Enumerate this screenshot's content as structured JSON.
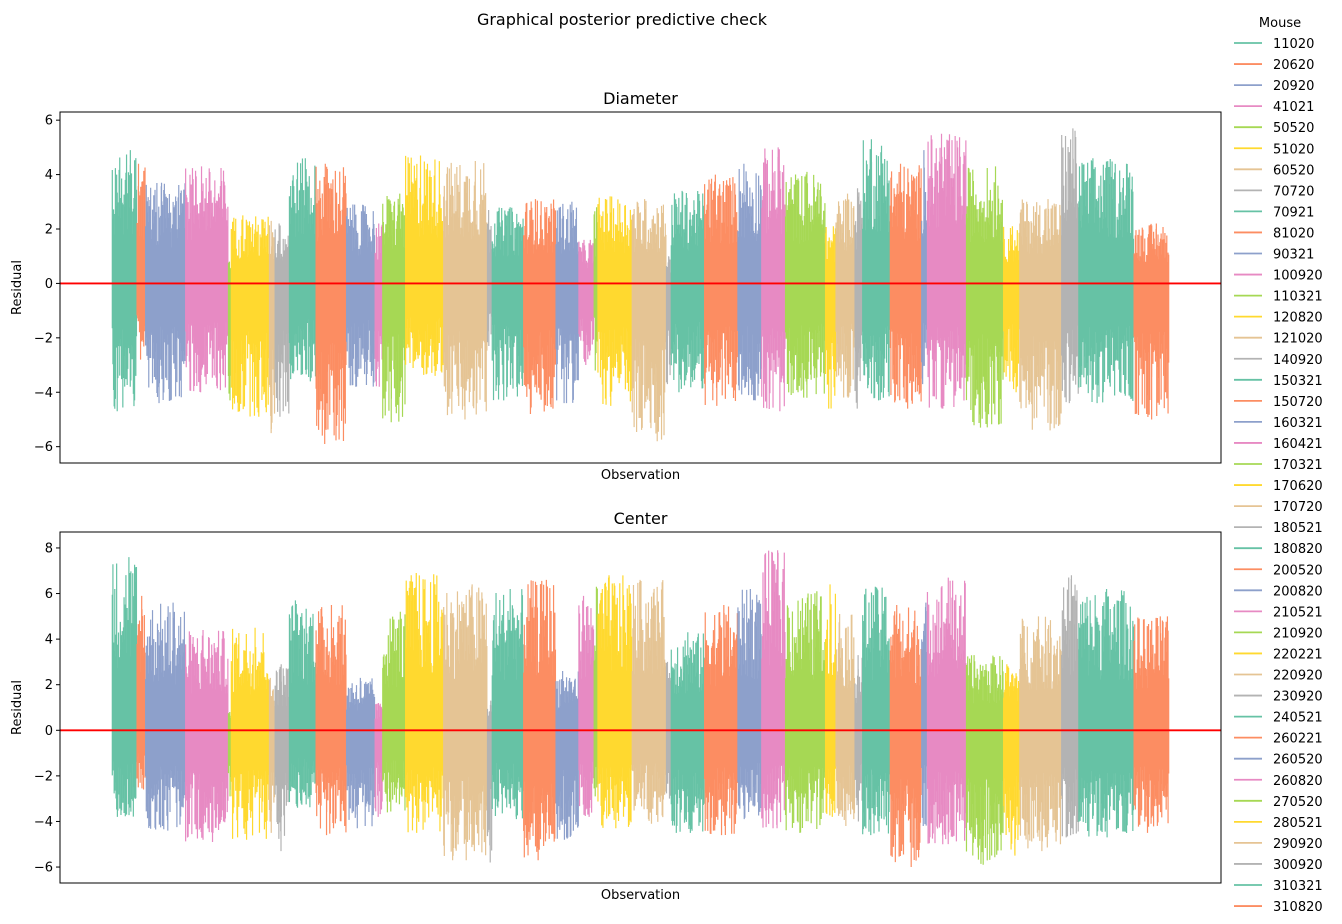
{
  "figure": {
    "suptitle": "Graphical posterior predictive check"
  },
  "legend": {
    "title": "Mouse",
    "placement": "outside-right"
  },
  "palette": [
    "#66c2a5",
    "#fc8d62",
    "#8da0cb",
    "#e78ac3",
    "#a6d854",
    "#ffd92f",
    "#e5c494",
    "#b3b3b3"
  ],
  "reference_line_color": "#ff0000",
  "chart_data": [
    {
      "type": "line",
      "title": "Diameter",
      "xlabel": "Observation",
      "ylabel": "Residual",
      "ylim": [
        -6.6,
        6.3
      ],
      "yticks": [
        -6,
        -4,
        -2,
        0,
        2,
        4,
        6
      ],
      "xticks": [],
      "grid": false,
      "reference_line": {
        "y": 0,
        "color": "#ff0000"
      },
      "series": [
        {
          "name": "11020",
          "observations": 26,
          "min": -4.7,
          "max": 4.9
        },
        {
          "name": "20620",
          "observations": 9,
          "min": -2.8,
          "max": 4.4
        },
        {
          "name": "20920",
          "observations": 42,
          "min": -4.4,
          "max": 3.7
        },
        {
          "name": "41021",
          "observations": 45,
          "min": -4.0,
          "max": 4.3
        },
        {
          "name": "50520",
          "observations": 3,
          "min": -4.3,
          "max": 0.8
        },
        {
          "name": "51020",
          "observations": 40,
          "min": -4.9,
          "max": 2.5
        },
        {
          "name": "60520",
          "observations": 6,
          "min": -5.5,
          "max": 2.3
        },
        {
          "name": "70720",
          "observations": 15,
          "min": -4.9,
          "max": 2.2
        },
        {
          "name": "70921",
          "observations": 28,
          "min": -3.6,
          "max": 4.6
        },
        {
          "name": "81020",
          "observations": 32,
          "min": -5.9,
          "max": 4.4
        },
        {
          "name": "90321",
          "observations": 30,
          "min": -3.8,
          "max": 2.9
        },
        {
          "name": "100920",
          "observations": 8,
          "min": -3.8,
          "max": 2.2
        },
        {
          "name": "110321",
          "observations": 24,
          "min": -5.1,
          "max": 3.3
        },
        {
          "name": "120820",
          "observations": 40,
          "min": -3.4,
          "max": 4.7
        },
        {
          "name": "121020",
          "observations": 46,
          "min": -5.0,
          "max": 4.5
        },
        {
          "name": "140920",
          "observations": 5,
          "min": -2.3,
          "max": 2.7
        },
        {
          "name": "150321",
          "observations": 33,
          "min": -4.3,
          "max": 2.8
        },
        {
          "name": "150720",
          "observations": 34,
          "min": -4.8,
          "max": 3.1
        },
        {
          "name": "160321",
          "observations": 24,
          "min": -4.4,
          "max": 3.0
        },
        {
          "name": "160421",
          "observations": 16,
          "min": -3.0,
          "max": 1.6
        },
        {
          "name": "170321",
          "observations": 4,
          "min": -3.2,
          "max": 2.8
        },
        {
          "name": "170620",
          "observations": 36,
          "min": -4.5,
          "max": 3.2
        },
        {
          "name": "170720",
          "observations": 36,
          "min": -5.8,
          "max": 3.1
        },
        {
          "name": "180521",
          "observations": 5,
          "min": -3.7,
          "max": 1.0
        },
        {
          "name": "180820",
          "observations": 35,
          "min": -4.0,
          "max": 3.4
        },
        {
          "name": "200520",
          "observations": 35,
          "min": -4.5,
          "max": 4.0
        },
        {
          "name": "200820",
          "observations": 25,
          "min": -4.3,
          "max": 4.4
        },
        {
          "name": "210521",
          "observations": 25,
          "min": -4.7,
          "max": 5.0
        },
        {
          "name": "210920",
          "observations": 42,
          "min": -4.2,
          "max": 4.1
        },
        {
          "name": "220221",
          "observations": 11,
          "min": -4.6,
          "max": 2.1
        },
        {
          "name": "220920",
          "observations": 20,
          "min": -4.2,
          "max": 3.3
        },
        {
          "name": "230920",
          "observations": 8,
          "min": -4.6,
          "max": 3.5
        },
        {
          "name": "240521",
          "observations": 29,
          "min": -4.3,
          "max": 5.3
        },
        {
          "name": "260221",
          "observations": 33,
          "min": -4.6,
          "max": 4.4
        },
        {
          "name": "260520",
          "observations": 6,
          "min": -3.7,
          "max": 4.9
        },
        {
          "name": "260820",
          "observations": 41,
          "min": -4.6,
          "max": 5.5
        },
        {
          "name": "270520",
          "observations": 39,
          "min": -5.3,
          "max": 4.3
        },
        {
          "name": "280521",
          "observations": 17,
          "min": -4.0,
          "max": 2.1
        },
        {
          "name": "290920",
          "observations": 44,
          "min": -5.4,
          "max": 3.1
        },
        {
          "name": "300920",
          "observations": 18,
          "min": -4.4,
          "max": 5.7
        },
        {
          "name": "310321",
          "observations": 58,
          "min": -4.4,
          "max": 4.6
        },
        {
          "name": "310820",
          "observations": 37,
          "min": -5.0,
          "max": 2.2
        }
      ]
    },
    {
      "type": "line",
      "title": "Center",
      "xlabel": "Observation",
      "ylabel": "Residual",
      "ylim": [
        -6.7,
        8.7
      ],
      "yticks": [
        -6,
        -4,
        -2,
        0,
        2,
        4,
        6,
        8
      ],
      "xticks": [],
      "grid": false,
      "reference_line": {
        "y": 0,
        "color": "#ff0000"
      },
      "series": [
        {
          "name": "11020",
          "observations": 26,
          "min": -3.8,
          "max": 7.6
        },
        {
          "name": "20620",
          "observations": 9,
          "min": -2.6,
          "max": 5.9
        },
        {
          "name": "20920",
          "observations": 42,
          "min": -4.4,
          "max": 5.6
        },
        {
          "name": "41021",
          "observations": 45,
          "min": -4.9,
          "max": 4.4
        },
        {
          "name": "50520",
          "observations": 3,
          "min": -2.9,
          "max": 0.8
        },
        {
          "name": "51020",
          "observations": 40,
          "min": -4.8,
          "max": 4.5
        },
        {
          "name": "60520",
          "observations": 6,
          "min": -4.5,
          "max": 2.3
        },
        {
          "name": "70720",
          "observations": 15,
          "min": -5.3,
          "max": 2.9
        },
        {
          "name": "70921",
          "observations": 28,
          "min": -3.4,
          "max": 5.7
        },
        {
          "name": "81020",
          "observations": 32,
          "min": -4.6,
          "max": 5.5
        },
        {
          "name": "90321",
          "observations": 30,
          "min": -4.3,
          "max": 2.3
        },
        {
          "name": "100920",
          "observations": 8,
          "min": -3.8,
          "max": 1.2
        },
        {
          "name": "110321",
          "observations": 24,
          "min": -3.6,
          "max": 5.2
        },
        {
          "name": "120820",
          "observations": 40,
          "min": -4.5,
          "max": 6.9
        },
        {
          "name": "121020",
          "observations": 46,
          "min": -5.7,
          "max": 6.4
        },
        {
          "name": "140920",
          "observations": 5,
          "min": -5.8,
          "max": 1.3
        },
        {
          "name": "150321",
          "observations": 33,
          "min": -3.9,
          "max": 6.2
        },
        {
          "name": "150720",
          "observations": 34,
          "min": -5.7,
          "max": 6.6
        },
        {
          "name": "160321",
          "observations": 24,
          "min": -4.8,
          "max": 2.6
        },
        {
          "name": "160421",
          "observations": 16,
          "min": -3.8,
          "max": 5.9
        },
        {
          "name": "170321",
          "observations": 4,
          "min": -2.9,
          "max": 6.3
        },
        {
          "name": "170620",
          "observations": 36,
          "min": -4.3,
          "max": 6.8
        },
        {
          "name": "170720",
          "observations": 36,
          "min": -4.1,
          "max": 6.6
        },
        {
          "name": "180521",
          "observations": 5,
          "min": -3.0,
          "max": 3.0
        },
        {
          "name": "180820",
          "observations": 35,
          "min": -4.5,
          "max": 4.3
        },
        {
          "name": "200520",
          "observations": 35,
          "min": -4.6,
          "max": 5.5
        },
        {
          "name": "200820",
          "observations": 25,
          "min": -3.9,
          "max": 6.2
        },
        {
          "name": "210521",
          "observations": 25,
          "min": -4.3,
          "max": 7.9
        },
        {
          "name": "210920",
          "observations": 42,
          "min": -4.5,
          "max": 6.1
        },
        {
          "name": "220221",
          "observations": 11,
          "min": -3.8,
          "max": 6.4
        },
        {
          "name": "220920",
          "observations": 20,
          "min": -4.2,
          "max": 5.1
        },
        {
          "name": "230920",
          "observations": 8,
          "min": -4.0,
          "max": 3.3
        },
        {
          "name": "240521",
          "observations": 29,
          "min": -4.6,
          "max": 6.3
        },
        {
          "name": "260221",
          "observations": 33,
          "min": -6.0,
          "max": 5.5
        },
        {
          "name": "260520",
          "observations": 6,
          "min": -4.2,
          "max": 5.6
        },
        {
          "name": "260820",
          "observations": 41,
          "min": -5.0,
          "max": 6.7
        },
        {
          "name": "270520",
          "observations": 39,
          "min": -5.9,
          "max": 3.3
        },
        {
          "name": "280521",
          "observations": 17,
          "min": -5.5,
          "max": 2.9
        },
        {
          "name": "290920",
          "observations": 44,
          "min": -5.3,
          "max": 5.0
        },
        {
          "name": "300920",
          "observations": 18,
          "min": -4.7,
          "max": 6.8
        },
        {
          "name": "310321",
          "observations": 58,
          "min": -4.7,
          "max": 6.2
        },
        {
          "name": "310820",
          "observations": 37,
          "min": -4.5,
          "max": 5.0
        }
      ]
    }
  ]
}
